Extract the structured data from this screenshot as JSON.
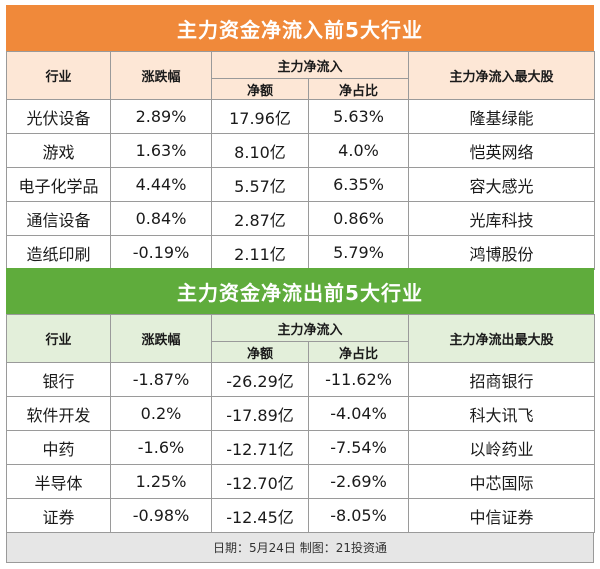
{
  "inflow": {
    "title": "主力资金净流入前5大行业",
    "headers": {
      "industry": "行业",
      "change": "涨跌幅",
      "group": "主力净流入",
      "amount": "净额",
      "ratio": "净占比",
      "top_stock": "主力净流入最大股"
    },
    "rows": [
      {
        "industry": "光伏设备",
        "change": "2.89%",
        "amount": "17.96亿",
        "ratio": "5.63%",
        "top_stock": "隆基绿能"
      },
      {
        "industry": "游戏",
        "change": "1.63%",
        "amount": "8.10亿",
        "ratio": "4.0%",
        "top_stock": "恺英网络"
      },
      {
        "industry": "电子化学品",
        "change": "4.44%",
        "amount": "5.57亿",
        "ratio": "6.35%",
        "top_stock": "容大感光"
      },
      {
        "industry": "通信设备",
        "change": "0.84%",
        "amount": "2.87亿",
        "ratio": "0.86%",
        "top_stock": "光库科技"
      },
      {
        "industry": "造纸印刷",
        "change": "-0.19%",
        "amount": "2.11亿",
        "ratio": "5.79%",
        "top_stock": "鸿博股份"
      }
    ]
  },
  "outflow": {
    "title": "主力资金净流出前5大行业",
    "headers": {
      "industry": "行业",
      "change": "涨跌幅",
      "group": "主力净流入",
      "amount": "净额",
      "ratio": "净占比",
      "top_stock": "主力净流出最大股"
    },
    "rows": [
      {
        "industry": "银行",
        "change": "-1.87%",
        "amount": "-26.29亿",
        "ratio": "-11.62%",
        "top_stock": "招商银行"
      },
      {
        "industry": "软件开发",
        "change": "0.2%",
        "amount": "-17.89亿",
        "ratio": "-4.04%",
        "top_stock": "科大讯飞"
      },
      {
        "industry": "中药",
        "change": "-1.6%",
        "amount": "-12.71亿",
        "ratio": "-7.54%",
        "top_stock": "以岭药业"
      },
      {
        "industry": "半导体",
        "change": "1.25%",
        "amount": "-12.70亿",
        "ratio": "-2.69%",
        "top_stock": "中芯国际"
      },
      {
        "industry": "证券",
        "change": "-0.98%",
        "amount": "-12.45亿",
        "ratio": "-8.05%",
        "top_stock": "中信证券"
      }
    ]
  },
  "footer": "日期：5月24日  制图：21投资通"
}
